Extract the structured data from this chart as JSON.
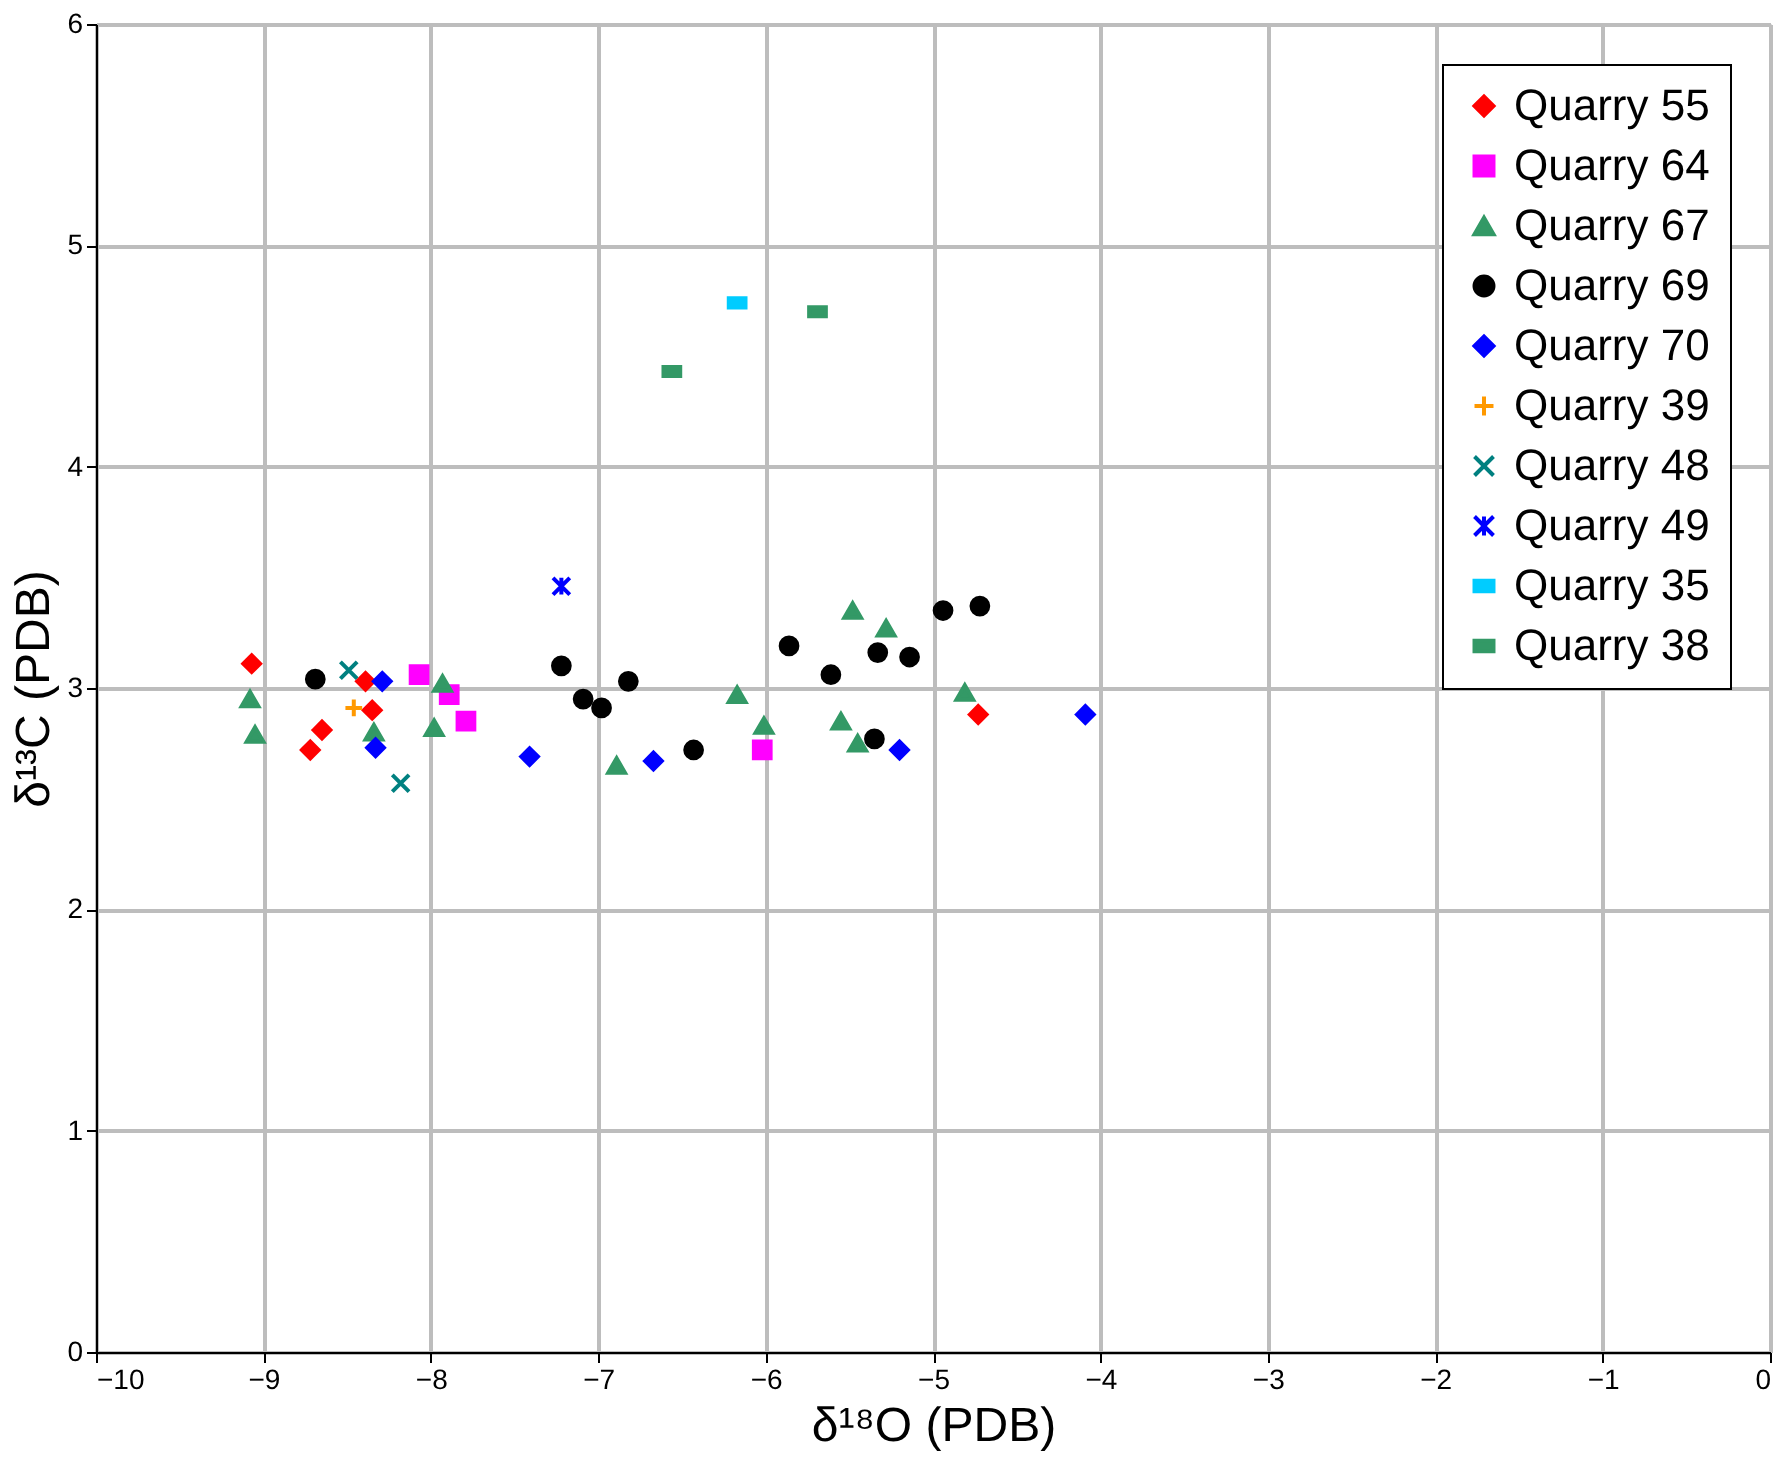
{
  "chart_data": {
    "type": "scatter",
    "xlabel": "δ¹⁸O (PDB)",
    "ylabel": "δ¹³C (PDB)",
    "xlim": [
      -10,
      0
    ],
    "xticks": [
      -10,
      -9,
      -8,
      -7,
      -6,
      -5,
      -4,
      -3,
      -2,
      -1,
      0
    ],
    "ylim": [
      0,
      6
    ],
    "yticks": [
      0,
      1,
      2,
      3,
      4,
      5,
      6
    ],
    "grid": true,
    "legend": "top right",
    "series": [
      {
        "name": "Quarry 55",
        "color": "#ff0000",
        "marker": "diamond",
        "x": [
          -9.07,
          -8.65,
          -8.72,
          -8.39,
          -8.35,
          -4.73
        ],
        "values": [
          3.11,
          2.81,
          2.72,
          3.03,
          2.9,
          2.88
        ]
      },
      {
        "name": "Quarry 64",
        "color": "#ff00ff",
        "marker": "square",
        "x": [
          -8.07,
          -7.89,
          -7.79,
          -6.02
        ],
        "values": [
          3.06,
          2.97,
          2.85,
          2.72
        ]
      },
      {
        "name": "Quarry 67",
        "color": "#339966",
        "marker": "triangle",
        "x": [
          -9.08,
          -9.05,
          -8.34,
          -7.93,
          -7.98,
          -6.89,
          -5.48,
          -5.28,
          -6.17,
          -6.01,
          -5.55,
          -5.45,
          -4.81
        ],
        "values": [
          2.95,
          2.79,
          2.8,
          3.02,
          2.82,
          2.65,
          3.35,
          3.27,
          2.97,
          2.83,
          2.85,
          2.75,
          2.98
        ]
      },
      {
        "name": "Quarry 69",
        "color": "#000000",
        "marker": "circle",
        "x": [
          -8.69,
          -7.22,
          -7.09,
          -6.98,
          -6.82,
          -6.43,
          -5.86,
          -5.61,
          -5.33,
          -5.14,
          -4.94,
          -4.72,
          -5.35
        ],
        "values": [
          3.04,
          3.1,
          2.95,
          2.91,
          3.03,
          2.72,
          3.19,
          3.06,
          3.16,
          3.14,
          3.35,
          3.37,
          2.77
        ]
      },
      {
        "name": "Quarry 70",
        "color": "#0000ff",
        "marker": "diamond",
        "x": [
          -8.29,
          -8.33,
          -7.41,
          -6.67,
          -5.2,
          -4.09
        ],
        "values": [
          3.03,
          2.73,
          2.69,
          2.67,
          2.72,
          2.88
        ]
      },
      {
        "name": "Quarry 39",
        "color": "#ff9900",
        "marker": "plus",
        "x": [
          -8.46
        ],
        "values": [
          2.91
        ]
      },
      {
        "name": "Quarry 48",
        "color": "#008080",
        "marker": "cross",
        "x": [
          -8.49,
          -8.18
        ],
        "values": [
          3.08,
          2.57
        ]
      },
      {
        "name": "Quarry 49",
        "color": "#0000ff",
        "marker": "cross",
        "x": [
          -7.22
        ],
        "values": [
          3.46
        ]
      },
      {
        "name": "Quarry 35",
        "color": "#00ccff",
        "x": [
          -6.17
        ],
        "values": [
          4.74
        ]
      },
      {
        "name": "Quarry 38",
        "color": "#339966",
        "x": [
          -6.56,
          -5.69
        ],
        "values": [
          4.43,
          4.7
        ]
      }
    ]
  }
}
